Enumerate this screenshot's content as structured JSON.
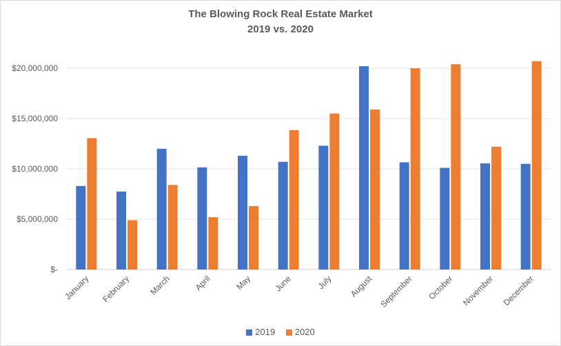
{
  "chart_data": {
    "type": "bar",
    "title": "The Blowing Rock Real Estate Market",
    "subtitle": "2019 vs. 2020",
    "categories": [
      "January",
      "February",
      "March",
      "April",
      "May",
      "June",
      "July",
      "August",
      "September",
      "October",
      "November",
      "December"
    ],
    "series": [
      {
        "name": "2019",
        "color": "#4472C4",
        "values": [
          8300000,
          7750000,
          12000000,
          10150000,
          11300000,
          10700000,
          12300000,
          20200000,
          10650000,
          10100000,
          10550000,
          10500000
        ]
      },
      {
        "name": "2020",
        "color": "#ED7D31",
        "values": [
          13050000,
          4900000,
          8400000,
          5200000,
          6300000,
          13850000,
          15500000,
          15900000,
          20000000,
          20400000,
          12200000,
          20700000
        ]
      }
    ],
    "yticks": [
      "$-",
      "$5,000,000",
      "$10,000,000",
      "$15,000,000",
      "$20,000,000"
    ],
    "ylim": [
      0,
      20000000
    ],
    "xlabel": "",
    "ylabel": "",
    "grid": true,
    "legend": "bottom"
  }
}
